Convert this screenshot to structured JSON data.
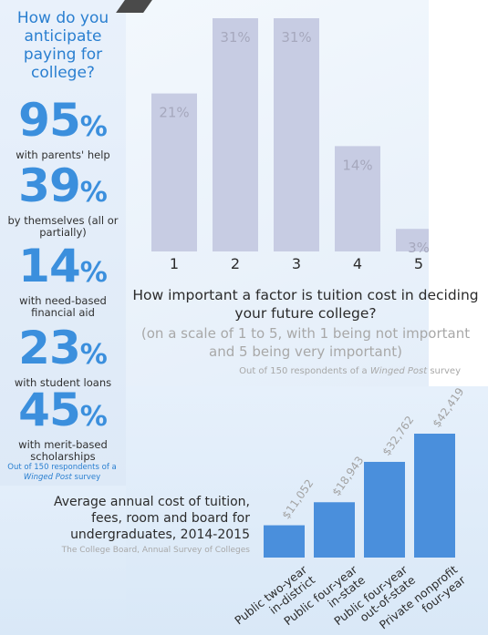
{
  "left": {
    "title": "How do you anticipate paying for college?",
    "stats": [
      {
        "value": "95",
        "unit": "%",
        "label": "with parents' help"
      },
      {
        "value": "39",
        "unit": "%",
        "label": "by themselves (all or partially)"
      },
      {
        "value": "14",
        "unit": "%",
        "label": "with need-based financial aid"
      },
      {
        "value": "23",
        "unit": "%",
        "label": "with student loans"
      },
      {
        "value": "45",
        "unit": "%",
        "label": "with merit-based scholarships"
      }
    ],
    "source_prefix": "Out of 150 respondents of a",
    "source_pub": "Winged Post",
    "source_suffix": "survey"
  },
  "chart_data": [
    {
      "type": "bar",
      "title": "How important a factor is tuition cost in deciding your future college?",
      "subtitle": "(on a scale of 1 to 5, with 1 being not important and 5 being very important)",
      "source_prefix": "Out of 150 respondents of a",
      "source_pub": "Winged Post",
      "source_suffix": "survey",
      "categories": [
        "1",
        "2",
        "3",
        "4",
        "5"
      ],
      "values": [
        21,
        31,
        31,
        14,
        3
      ],
      "labels": [
        "21%",
        "31%",
        "31%",
        "14%",
        "3%"
      ],
      "ylim": [
        0,
        31
      ],
      "color": "#c7cce3",
      "label_color": "#a6a8bd"
    },
    {
      "type": "bar",
      "title": "Average annual cost of tuition, fees, room and board for undergraduates, 2014-2015",
      "source": "The College Board, Annual Survey of Colleges",
      "categories": [
        "Public two-year in-district",
        "Public four-year in-state",
        "Public four-year out-of-state",
        "Private nonprofit four-year"
      ],
      "values": [
        11052,
        18943,
        32762,
        42419
      ],
      "labels": [
        "$11,052",
        "$18,943",
        "$32,762",
        "$42,419"
      ],
      "ylim": [
        0,
        42419
      ],
      "color": "#4a8fdc",
      "label_color": "#a3a3a3"
    }
  ]
}
